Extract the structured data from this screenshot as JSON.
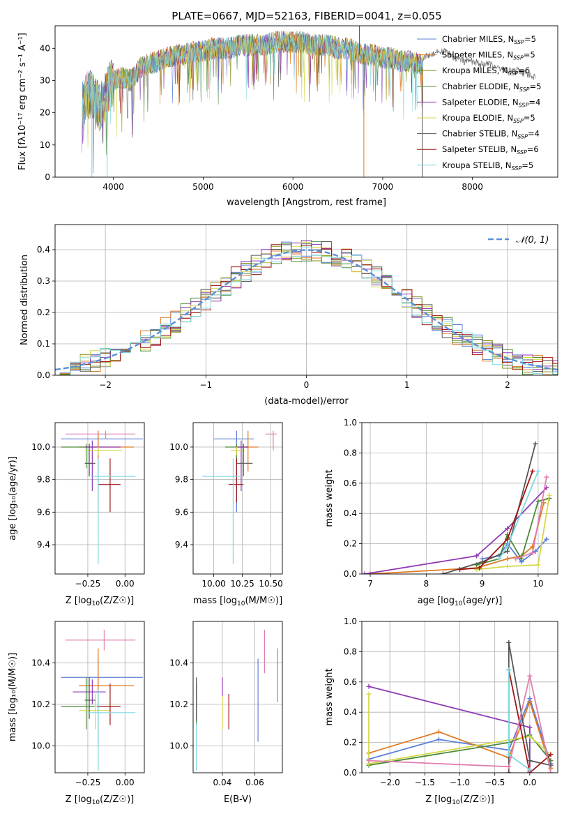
{
  "figure": {
    "title": "PLATE=0667, MJD=52163, FIBERID=0041, z=0.055"
  },
  "colors": {
    "models": [
      "#5b7fd8",
      "#e07a23",
      "#8a8a1a",
      "#4d8a3a",
      "#8e3bb5",
      "#d4d84a",
      "#555555",
      "#a01515",
      "#7fd8e0"
    ],
    "grid": "#b0b0b0",
    "normal_curve": "#5b8fd8",
    "pink": "#e07fb0",
    "purple": "#8e3bb5",
    "lime": "#c8e04a"
  },
  "chart_data": [
    {
      "id": "spectrum",
      "type": "line",
      "title": "PLATE=0667, MJD=52163, FIBERID=0041, z=0.055",
      "xlabel": "wavelength [Angstrom, rest frame]",
      "ylabel": "Flux [f",
      "ylabel_full": "Flux [fλ10⁻¹⁷ erg cm⁻² s⁻¹ A⁻¹]",
      "xlim": [
        3350,
        8950
      ],
      "ylim": [
        0,
        47
      ],
      "xticks": [
        4000,
        5000,
        6000,
        7000,
        8000
      ],
      "yticks": [
        0,
        10,
        20,
        30,
        40
      ],
      "grid": false,
      "legend_position": "top-right",
      "spectrum_envelope": {
        "x": [
          3650,
          3700,
          3750,
          3800,
          3850,
          3900,
          3950,
          4000,
          4100,
          4200,
          4300,
          4400,
          4500,
          4600,
          4700,
          4800,
          4900,
          5000,
          5100,
          5200,
          5300,
          5400,
          5500,
          5600,
          5700,
          5800,
          5900,
          6000,
          6100,
          6200,
          6300,
          6400,
          6500,
          6600,
          6700,
          6800,
          6900,
          7000,
          7100,
          7200,
          7300,
          7400,
          7450
        ],
        "y": [
          22,
          25,
          26,
          24,
          22,
          24,
          28,
          30,
          31,
          30,
          34,
          35,
          36,
          37,
          38,
          38,
          39,
          39,
          40,
          40,
          40,
          41,
          41,
          41,
          41,
          42,
          42,
          42,
          42,
          41,
          41,
          41,
          40,
          40,
          39,
          38,
          38,
          37,
          37,
          36,
          36,
          35,
          35
        ]
      },
      "continuation": {
        "x": [
          7450,
          7600,
          7700,
          7800,
          7900,
          8000,
          8100,
          8200,
          8300,
          8400,
          8500,
          8600,
          8700
        ],
        "y": [
          37,
          39,
          39,
          37,
          36,
          36,
          35,
          35,
          34,
          33,
          33,
          32,
          31
        ]
      },
      "series": [
        {
          "name": "Chabrier MILES, N",
          "suffix": "=5"
        },
        {
          "name": "Salpeter MILES, N",
          "suffix": "=5"
        },
        {
          "name": "Kroupa MILES, N",
          "suffix": "=6"
        },
        {
          "name": "Chabrier ELODIE, N",
          "suffix": "=5"
        },
        {
          "name": "Salpeter ELODIE, N",
          "suffix": "=4"
        },
        {
          "name": "Kroupa ELODIE, N",
          "suffix": "=5"
        },
        {
          "name": "Chabrier STELIB, N",
          "suffix": "=4"
        },
        {
          "name": "Salpeter STELIB, N",
          "suffix": "=6"
        },
        {
          "name": "Kroupa STELIB, N",
          "suffix": "=5"
        }
      ],
      "legend_sub": "SSP"
    },
    {
      "id": "residuals",
      "type": "histogram",
      "xlabel": "(data-model)/error",
      "ylabel": "Normed distribution",
      "xlim": [
        -2.5,
        2.5
      ],
      "ylim": [
        0,
        0.48
      ],
      "xticks": [
        -2,
        -1,
        0,
        1,
        2
      ],
      "yticks": [
        0.0,
        0.1,
        0.2,
        0.3,
        0.4
      ],
      "grid": true,
      "legend_position": "top-right",
      "legend_label": "𝒩(0, 1)",
      "bin_width": 0.1
    },
    {
      "id": "age-vs-z",
      "type": "errorbar",
      "xlabel": "Z [log",
      "ylabel": "age  [log",
      "xlim": [
        -0.47,
        0.13
      ],
      "ylim": [
        9.22,
        10.15
      ],
      "xticks": [
        -0.25,
        0.0
      ],
      "yticks": [
        9.4,
        9.6,
        9.8,
        10.0
      ],
      "grid": true,
      "points": [
        {
          "c": 0,
          "x": -0.18,
          "y": 10.05,
          "xe": [
            -0.43,
            0.12
          ],
          "ye": [
            9.6,
            10.1
          ]
        },
        {
          "c": 1,
          "x": -0.18,
          "y": 10.0,
          "xe": [
            -0.31,
            0.06
          ],
          "ye": [
            9.85,
            10.1
          ]
        },
        {
          "c": 3,
          "x": -0.26,
          "y": 10.0,
          "xe": [
            -0.43,
            -0.2
          ],
          "ye": [
            9.87,
            10.02
          ]
        },
        {
          "c": 4,
          "x": -0.22,
          "y": 10.0,
          "xe": [
            -0.27,
            -0.03
          ],
          "ye": [
            9.73,
            10.04
          ]
        },
        {
          "c": 5,
          "x": -0.18,
          "y": 9.98,
          "xe": [
            -0.27,
            -0.02
          ],
          "ye": [
            9.95,
            10.0
          ]
        },
        {
          "c": 6,
          "x": -0.24,
          "y": 9.9,
          "xe": [
            -0.27,
            -0.2
          ],
          "ye": [
            9.82,
            10.02
          ]
        },
        {
          "c": 7,
          "x": -0.1,
          "y": 9.77,
          "xe": [
            -0.18,
            -0.03
          ],
          "ye": [
            9.6,
            9.93
          ]
        },
        {
          "c": 8,
          "x": -0.18,
          "y": 9.82,
          "xe": [
            -0.23,
            0.07
          ],
          "ye": [
            9.28,
            9.93
          ]
        },
        {
          "c": 9,
          "x": -0.13,
          "y": 10.08,
          "xe": [
            -0.4,
            0.07
          ],
          "ye": [
            10.05,
            10.1
          ]
        }
      ]
    },
    {
      "id": "age-vs-mass",
      "type": "errorbar",
      "xlabel": "mass [log",
      "xlim": [
        9.82,
        10.6
      ],
      "ylim": [
        9.22,
        10.15
      ],
      "xticks": [
        10.0,
        10.25,
        10.5
      ],
      "yticks": [
        9.4,
        9.6,
        9.8,
        10.0
      ],
      "grid": true,
      "points": [
        {
          "c": 0,
          "x": 10.2,
          "y": 10.05,
          "xe": [
            10.0,
            10.35
          ],
          "ye": [
            9.6,
            10.1
          ]
        },
        {
          "c": 1,
          "x": 10.3,
          "y": 10.0,
          "xe": [
            10.21,
            10.39
          ],
          "ye": [
            9.85,
            10.1
          ]
        },
        {
          "c": 3,
          "x": 10.2,
          "y": 10.0,
          "xe": [
            10.1,
            10.3
          ],
          "ye": [
            9.87,
            10.02
          ]
        },
        {
          "c": 4,
          "x": 10.24,
          "y": 10.0,
          "xe": [
            10.2,
            10.3
          ],
          "ye": [
            9.73,
            10.04
          ]
        },
        {
          "c": 5,
          "x": 10.2,
          "y": 9.98,
          "xe": [
            10.15,
            10.27
          ],
          "ye": [
            9.95,
            10.0
          ]
        },
        {
          "c": 6,
          "x": 10.26,
          "y": 9.9,
          "xe": [
            10.2,
            10.34
          ],
          "ye": [
            9.82,
            10.02
          ]
        },
        {
          "c": 7,
          "x": 10.2,
          "y": 9.77,
          "xe": [
            10.13,
            10.26
          ],
          "ye": [
            9.66,
            9.93
          ]
        },
        {
          "c": 8,
          "x": 10.17,
          "y": 9.82,
          "xe": [
            9.9,
            10.23
          ],
          "ye": [
            9.28,
            9.93
          ]
        },
        {
          "c": 9,
          "x": 10.52,
          "y": 10.08,
          "xe": [
            10.45,
            10.55
          ],
          "ye": [
            9.98,
            10.1
          ]
        }
      ]
    },
    {
      "id": "weight-vs-age",
      "type": "line",
      "xlabel": "age  [log",
      "ylabel": "mass weight",
      "xlim": [
        6.85,
        10.35
      ],
      "ylim": [
        0,
        1.0
      ],
      "xticks": [
        7,
        8,
        9,
        10
      ],
      "yticks": [
        0.0,
        0.2,
        0.4,
        0.6,
        0.8,
        1.0
      ],
      "grid": true,
      "series": [
        {
          "c": 0,
          "x": [
            9.0,
            9.3,
            9.45,
            9.7,
            9.95,
            10.15
          ],
          "y": [
            0.1,
            0.12,
            0.2,
            0.08,
            0.15,
            0.23
          ]
        },
        {
          "c": 1,
          "x": [
            7.0,
            8.9,
            9.45,
            9.7,
            9.9,
            10.1
          ],
          "y": [
            0.0,
            0.04,
            0.1,
            0.12,
            0.18,
            0.47
          ]
        },
        {
          "c": 3,
          "x": [
            8.9,
            9.3,
            9.45,
            9.7,
            10.0,
            10.2
          ],
          "y": [
            0.06,
            0.1,
            0.26,
            0.1,
            0.48,
            0.5
          ]
        },
        {
          "c": 4,
          "x": [
            6.9,
            8.9,
            9.45,
            10.15
          ],
          "y": [
            0.0,
            0.12,
            0.3,
            0.57
          ]
        },
        {
          "c": 5,
          "x": [
            8.9,
            9.45,
            10.0,
            10.2
          ],
          "y": [
            0.03,
            0.05,
            0.06,
            0.52
          ]
        },
        {
          "c": 6,
          "x": [
            8.3,
            9.0,
            9.45,
            9.95
          ],
          "y": [
            0.0,
            0.08,
            0.15,
            0.86
          ]
        },
        {
          "c": 7,
          "x": [
            8.6,
            8.95,
            9.45,
            9.9
          ],
          "y": [
            0.03,
            0.04,
            0.23,
            0.68
          ]
        },
        {
          "c": 8,
          "x": [
            9.3,
            9.45,
            10.0
          ],
          "y": [
            0.1,
            0.18,
            0.68
          ]
        },
        {
          "c": 9,
          "x": [
            9.6,
            9.9,
            10.15
          ],
          "y": [
            0.1,
            0.14,
            0.64
          ]
        }
      ]
    },
    {
      "id": "mass-vs-z",
      "type": "errorbar",
      "xlabel": "Z [log",
      "ylabel": "mass [log",
      "xlim": [
        -0.47,
        0.13
      ],
      "ylim": [
        9.87,
        10.6
      ],
      "xticks": [
        -0.25,
        0.0
      ],
      "yticks": [
        10.0,
        10.2,
        10.4
      ],
      "grid": true,
      "points": [
        {
          "c": 0,
          "x": -0.18,
          "y": 10.33,
          "xe": [
            -0.43,
            0.12
          ],
          "ye": [
            10.0,
            10.42
          ]
        },
        {
          "c": 1,
          "x": -0.18,
          "y": 10.29,
          "xe": [
            -0.31,
            0.06
          ],
          "ye": [
            10.2,
            10.47
          ]
        },
        {
          "c": 3,
          "x": -0.26,
          "y": 10.19,
          "xe": [
            -0.43,
            -0.2
          ],
          "ye": [
            10.08,
            10.33
          ]
        },
        {
          "c": 4,
          "x": -0.22,
          "y": 10.26,
          "xe": [
            -0.35,
            -0.13
          ],
          "ye": [
            10.2,
            10.32
          ]
        },
        {
          "c": 5,
          "x": -0.2,
          "y": 10.17,
          "xe": [
            -0.31,
            -0.1
          ],
          "ye": [
            10.08,
            10.25
          ]
        },
        {
          "c": 6,
          "x": -0.24,
          "y": 10.22,
          "xe": [
            -0.27,
            -0.2
          ],
          "ye": [
            10.13,
            10.33
          ]
        },
        {
          "c": 7,
          "x": -0.1,
          "y": 10.19,
          "xe": [
            -0.19,
            -0.03
          ],
          "ye": [
            10.1,
            10.3
          ]
        },
        {
          "c": 8,
          "x": -0.18,
          "y": 10.16,
          "xe": [
            -0.25,
            0.07
          ],
          "ye": [
            9.88,
            10.27
          ]
        },
        {
          "c": 9,
          "x": -0.14,
          "y": 10.51,
          "xe": [
            -0.4,
            0.07
          ],
          "ye": [
            10.46,
            10.56
          ]
        }
      ]
    },
    {
      "id": "mass-vs-ebv",
      "type": "errorbar",
      "xlabel": "E(B-V)",
      "xlim": [
        0.022,
        0.077
      ],
      "ylim": [
        9.87,
        10.6
      ],
      "xticks": [
        0.04,
        0.06
      ],
      "yticks": [
        10.0,
        10.2,
        10.4
      ],
      "grid": true,
      "points": [
        {
          "c": 0,
          "x": 0.062,
          "y": 10.22,
          "ye": [
            10.02,
            10.42
          ]
        },
        {
          "c": 1,
          "x": 0.074,
          "y": 10.34,
          "ye": [
            10.21,
            10.47
          ]
        },
        {
          "c": 3,
          "x": 0.024,
          "y": 10.2,
          "ye": [
            10.1,
            10.3
          ]
        },
        {
          "c": 4,
          "x": 0.04,
          "y": 10.28,
          "ye": [
            10.24,
            10.33
          ]
        },
        {
          "c": 5,
          "x": 0.04,
          "y": 10.16,
          "ye": [
            10.08,
            10.24
          ]
        },
        {
          "c": 6,
          "x": 0.024,
          "y": 10.25,
          "ye": [
            10.12,
            10.33
          ]
        },
        {
          "c": 7,
          "x": 0.044,
          "y": 10.17,
          "ye": [
            10.08,
            10.25
          ]
        },
        {
          "c": 8,
          "x": 0.024,
          "y": 10.0,
          "ye": [
            9.88,
            10.11
          ]
        },
        {
          "c": 9,
          "x": 0.066,
          "y": 10.45,
          "ye": [
            10.35,
            10.56
          ]
        }
      ]
    },
    {
      "id": "weight-vs-z",
      "type": "line",
      "xlabel": "Z [log",
      "ylabel": "mass weight",
      "xlim": [
        -2.4,
        0.4
      ],
      "ylim": [
        0,
        1.0
      ],
      "xticks": [
        -2.0,
        -1.5,
        -1.0,
        -0.5,
        0.0
      ],
      "yticks": [
        0.0,
        0.2,
        0.4,
        0.6,
        0.8,
        1.0
      ],
      "grid": true,
      "series": [
        {
          "c": 0,
          "x": [
            -2.3,
            -1.3,
            -0.3,
            0.0,
            0.3
          ],
          "y": [
            0.09,
            0.22,
            0.15,
            0.49,
            0.06
          ]
        },
        {
          "c": 1,
          "x": [
            -2.3,
            -1.3,
            -0.3,
            0.0,
            0.3
          ],
          "y": [
            0.13,
            0.27,
            0.1,
            0.47,
            0.03
          ]
        },
        {
          "c": 3,
          "x": [
            -2.3,
            -0.3,
            0.0,
            0.3
          ],
          "y": [
            0.05,
            0.2,
            0.25,
            0.08
          ]
        },
        {
          "c": 4,
          "x": [
            -2.3,
            0.0,
            0.0
          ],
          "y": [
            0.57,
            0.3,
            0.01
          ]
        },
        {
          "c": 5,
          "x": [
            -2.3,
            -2.3,
            0.0,
            0.3
          ],
          "y": [
            0.52,
            0.06,
            0.24,
            0.12
          ]
        },
        {
          "c": 6,
          "x": [
            -0.3,
            -0.3,
            0.0,
            0.3
          ],
          "y": [
            0.0,
            0.86,
            0.08,
            0.05
          ]
        },
        {
          "c": 7,
          "x": [
            -0.3,
            0.0,
            0.3
          ],
          "y": [
            0.68,
            0.0,
            0.12
          ]
        },
        {
          "c": 8,
          "x": [
            -0.3,
            -0.3,
            0.0
          ],
          "y": [
            0.68,
            0.12,
            0.02
          ]
        },
        {
          "c": 9,
          "x": [
            -2.3,
            -0.3,
            0.0,
            0.3
          ],
          "y": [
            0.08,
            0.04,
            0.64,
            0.0
          ]
        }
      ]
    }
  ]
}
